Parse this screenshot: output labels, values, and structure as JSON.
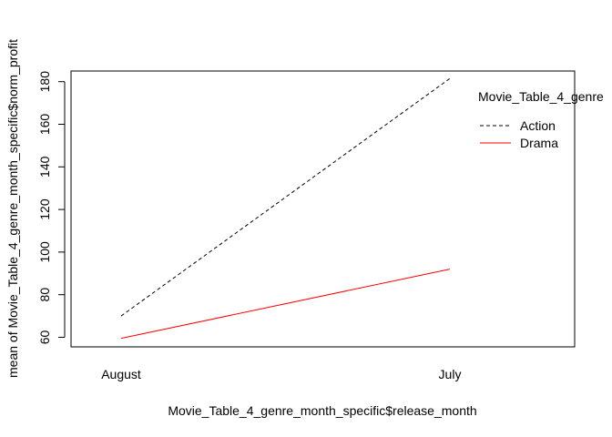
{
  "chart_data": {
    "type": "line",
    "title": "",
    "xlabel": "Movie_Table_4_genre_month_specific$release_month",
    "ylabel": "mean of  Movie_Table_4_genre_month_specific$norm_profit",
    "categories": [
      "August",
      "July"
    ],
    "ylim": [
      55.5,
      185
    ],
    "yticks": [
      60,
      80,
      100,
      120,
      140,
      160,
      180
    ],
    "grid": false,
    "legend": {
      "title": "Movie_Table_4_genre",
      "placement": "top-right",
      "entries": [
        "Action",
        "Drama"
      ]
    },
    "series": [
      {
        "name": "Action",
        "values": [
          70,
          181.5
        ],
        "color": "#000000",
        "linestyle": "dashed"
      },
      {
        "name": "Drama",
        "values": [
          59.5,
          92
        ],
        "color": "#ff0000",
        "linestyle": "solid"
      }
    ]
  }
}
